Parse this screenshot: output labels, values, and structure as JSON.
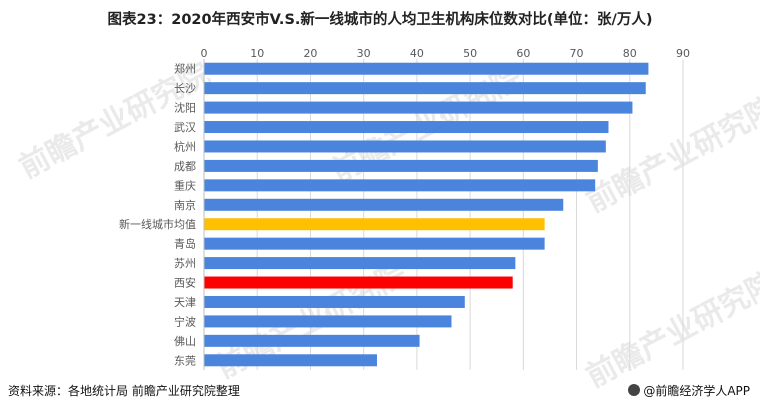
{
  "title": "图表23：2020年西安市V.S.新一线城市的人均卫生机构床位数对比(单位：张/万人)",
  "chart_data": {
    "type": "bar",
    "orientation": "horizontal",
    "title": "图表23：2020年西安市V.S.新一线城市的人均卫生机构床位数对比(单位：张/万人)",
    "xlim": [
      0,
      90
    ],
    "xticks": [
      0,
      10,
      20,
      30,
      40,
      50,
      60,
      70,
      80,
      90
    ],
    "xlabel": "",
    "ylabel": "",
    "categories": [
      "郑州",
      "长沙",
      "沈阳",
      "武汉",
      "杭州",
      "成都",
      "重庆",
      "南京",
      "新一线城市均值",
      "青岛",
      "苏州",
      "西安",
      "天津",
      "宁波",
      "佛山",
      "东莞"
    ],
    "values": [
      83.5,
      83,
      80.5,
      76,
      75.5,
      74,
      73.5,
      67.5,
      64,
      64,
      58.5,
      58,
      49,
      46.5,
      40.5,
      32.5
    ],
    "colors": {
      "default": "#4a84dc",
      "average": "#ffc000",
      "highlight": "#ff0000",
      "grid": "#d9d9d9",
      "axis_text": "#595959"
    },
    "color_roles": [
      "default",
      "default",
      "default",
      "default",
      "default",
      "default",
      "default",
      "default",
      "average",
      "default",
      "default",
      "highlight",
      "default",
      "default",
      "default",
      "default"
    ]
  },
  "footer": {
    "source": "资料来源：各地统计局 前瞻产业研究院整理",
    "brand": "@前瞻经济学人APP"
  },
  "watermark": "前瞻产业研究院"
}
